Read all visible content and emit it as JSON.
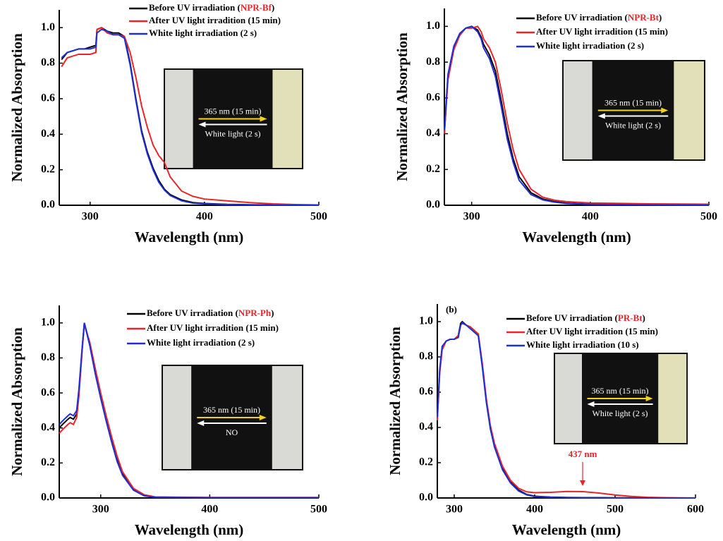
{
  "chart_data": [
    {
      "type": "line",
      "x_label": "Wavelength (nm)",
      "y_label": "Normalized Absorption",
      "xlim": [
        273,
        500
      ],
      "xticks": [
        300,
        400,
        500
      ],
      "ylim": [
        0,
        1.1
      ],
      "yticks": [
        {
          "value": 0,
          "label": "0.0"
        },
        {
          "value": 0.2,
          "label": "0.2"
        },
        {
          "value": 0.4,
          "label": "0.4"
        },
        {
          "value": 0.6,
          "label": "0.6"
        },
        {
          "value": 0.8,
          "label": "0.8"
        },
        {
          "value": 1,
          "label": "1.0"
        }
      ],
      "x": [
        275,
        280,
        285,
        290,
        295,
        300,
        305,
        306,
        310,
        315,
        320,
        325,
        330,
        335,
        340,
        345,
        350,
        355,
        360,
        365,
        370,
        380,
        390,
        400,
        420,
        440,
        460,
        480,
        500
      ],
      "series": [
        {
          "name": "Before UV  irradiation (NPR-Bf)",
          "color": "#000000",
          "values": [
            0.82,
            0.86,
            0.87,
            0.88,
            0.88,
            0.89,
            0.9,
            0.99,
            1.0,
            0.98,
            0.97,
            0.97,
            0.95,
            0.8,
            0.6,
            0.42,
            0.3,
            0.21,
            0.14,
            0.09,
            0.06,
            0.03,
            0.015,
            0.01,
            0.005,
            0.003,
            0.002,
            0.001,
            0
          ]
        },
        {
          "name": "After UV light irradition (15 min)",
          "color": "#e8262a",
          "values": [
            0.78,
            0.83,
            0.84,
            0.85,
            0.85,
            0.85,
            0.86,
            0.99,
            1.0,
            0.97,
            0.96,
            0.96,
            0.95,
            0.86,
            0.72,
            0.56,
            0.44,
            0.34,
            0.28,
            0.24,
            0.16,
            0.08,
            0.05,
            0.035,
            0.025,
            0.015,
            0.008,
            0.004,
            0.002
          ]
        },
        {
          "name": "White light irradiation (2 s)",
          "color": "#1f2fd6",
          "values": [
            0.83,
            0.86,
            0.87,
            0.88,
            0.88,
            0.88,
            0.89,
            0.97,
            0.99,
            0.98,
            0.96,
            0.96,
            0.94,
            0.79,
            0.59,
            0.41,
            0.29,
            0.2,
            0.13,
            0.085,
            0.055,
            0.025,
            0.012,
            0.008,
            0.004,
            0.002,
            0.001,
            0.001,
            0
          ]
        }
      ],
      "inset_labels": [
        "365 nm (15 min)",
        "White light (2 s)"
      ]
    },
    {
      "type": "line",
      "x_label": "Wavelength (nm)",
      "y_label": "Normalized Absorption",
      "xlim": [
        277,
        500
      ],
      "xticks": [
        300,
        400,
        500
      ],
      "ylim": [
        0,
        1.1
      ],
      "yticks": [
        {
          "value": 0,
          "label": "0.0"
        },
        {
          "value": 0.2,
          "label": "0.2"
        },
        {
          "value": 0.4,
          "label": "0.4"
        },
        {
          "value": 0.6,
          "label": "0.6"
        },
        {
          "value": 0.8,
          "label": "0.8"
        },
        {
          "value": 1,
          "label": "1.0"
        }
      ],
      "x": [
        277,
        280,
        285,
        290,
        295,
        300,
        305,
        308,
        310,
        315,
        320,
        325,
        330,
        335,
        340,
        350,
        360,
        370,
        380,
        400,
        450,
        500
      ],
      "series": [
        {
          "name": "Before UV  irradiation (NPR-Bt)",
          "color": "#000000",
          "values": [
            0.4,
            0.72,
            0.88,
            0.96,
            0.99,
            1.0,
            0.98,
            0.94,
            0.9,
            0.84,
            0.75,
            0.58,
            0.4,
            0.26,
            0.16,
            0.07,
            0.035,
            0.02,
            0.012,
            0.006,
            0.003,
            0.002
          ]
        },
        {
          "name": "After UV light irradition (15 min)",
          "color": "#e8262a",
          "values": [
            0.4,
            0.7,
            0.87,
            0.95,
            0.99,
            0.99,
            1.0,
            0.97,
            0.93,
            0.88,
            0.8,
            0.64,
            0.46,
            0.31,
            0.2,
            0.09,
            0.045,
            0.028,
            0.02,
            0.013,
            0.008,
            0.006
          ]
        },
        {
          "name": "White light irradiation (2 s)",
          "color": "#1f2fd6",
          "values": [
            0.42,
            0.73,
            0.89,
            0.96,
            0.99,
            1.0,
            0.97,
            0.93,
            0.88,
            0.82,
            0.72,
            0.55,
            0.37,
            0.24,
            0.14,
            0.06,
            0.03,
            0.017,
            0.01,
            0.005,
            0.002,
            0.001
          ]
        }
      ],
      "inset_labels": [
        "365 nm (15 min)",
        "White light (2 s)"
      ]
    },
    {
      "type": "line",
      "x_label": "Wavelength (nm)",
      "y_label": "Normalized Absorption",
      "xlim": [
        262,
        500
      ],
      "xticks": [
        300,
        400,
        500
      ],
      "ylim": [
        0,
        1.1
      ],
      "yticks": [
        {
          "value": 0,
          "label": "0.0"
        },
        {
          "value": 0.2,
          "label": "0.2"
        },
        {
          "value": 0.4,
          "label": "0.4"
        },
        {
          "value": 0.6,
          "label": "0.6"
        },
        {
          "value": 0.8,
          "label": "0.8"
        },
        {
          "value": 1,
          "label": "1.0"
        }
      ],
      "x": [
        262,
        265,
        270,
        272,
        275,
        278,
        280,
        283,
        285,
        290,
        295,
        300,
        305,
        310,
        315,
        320,
        330,
        340,
        350,
        400,
        450,
        500
      ],
      "series": [
        {
          "name": "Before UV  irradiation (NPR-Ph)",
          "color": "#000000",
          "values": [
            0.4,
            0.42,
            0.45,
            0.46,
            0.45,
            0.48,
            0.6,
            0.85,
            1.0,
            0.88,
            0.72,
            0.58,
            0.45,
            0.33,
            0.22,
            0.14,
            0.05,
            0.015,
            0.005,
            0.002,
            0.002,
            0.002
          ]
        },
        {
          "name": "After UV light irradition (15 min)",
          "color": "#e8262a",
          "values": [
            0.37,
            0.39,
            0.42,
            0.43,
            0.42,
            0.46,
            0.58,
            0.84,
            0.99,
            0.89,
            0.74,
            0.6,
            0.47,
            0.35,
            0.24,
            0.15,
            0.055,
            0.018,
            0.006,
            0.003,
            0.003,
            0.003
          ]
        },
        {
          "name": "White light irradiation (2 s)",
          "color": "#1f2fd6",
          "values": [
            0.42,
            0.44,
            0.47,
            0.48,
            0.47,
            0.5,
            0.62,
            0.86,
            1.0,
            0.87,
            0.71,
            0.57,
            0.44,
            0.32,
            0.21,
            0.13,
            0.045,
            0.012,
            0.004,
            0.002,
            0.002,
            0.002
          ]
        }
      ],
      "inset_labels": [
        "365 nm (15 min)",
        "NO"
      ]
    },
    {
      "type": "line",
      "panel_label": "(b)",
      "annotation": "437 nm",
      "x_label": "Wavelength (nm)",
      "y_label": "Normalized Absorption",
      "xlim": [
        279,
        600
      ],
      "xticks": [
        300,
        400,
        500,
        600
      ],
      "ylim": [
        0,
        1.1
      ],
      "yticks": [
        {
          "value": 0,
          "label": "0.0"
        },
        {
          "value": 0.2,
          "label": "0.2"
        },
        {
          "value": 0.4,
          "label": "0.4"
        },
        {
          "value": 0.6,
          "label": "0.6"
        },
        {
          "value": 0.8,
          "label": "0.8"
        },
        {
          "value": 1,
          "label": "1.0"
        }
      ],
      "x": [
        279,
        282,
        285,
        290,
        295,
        300,
        305,
        308,
        310,
        315,
        320,
        325,
        330,
        335,
        340,
        345,
        350,
        360,
        370,
        380,
        390,
        400,
        420,
        440,
        460,
        480,
        500,
        520,
        540,
        560,
        580,
        600
      ],
      "series": [
        {
          "name": "Before UV  irradiation (PR-Bt)",
          "color": "#000000",
          "values": [
            0.45,
            0.72,
            0.85,
            0.89,
            0.9,
            0.9,
            0.92,
            0.99,
            1.0,
            0.98,
            0.97,
            0.95,
            0.92,
            0.75,
            0.55,
            0.4,
            0.3,
            0.17,
            0.09,
            0.045,
            0.02,
            0.01,
            0.005,
            0.003,
            0.002,
            0.002,
            0.001,
            0.001,
            0,
            0,
            0,
            0
          ]
        },
        {
          "name": "After UV light irradition (15 min)",
          "color": "#e8262a",
          "values": [
            0.44,
            0.71,
            0.84,
            0.89,
            0.9,
            0.9,
            0.92,
            0.98,
            0.99,
            0.98,
            0.97,
            0.95,
            0.93,
            0.76,
            0.56,
            0.41,
            0.31,
            0.18,
            0.1,
            0.055,
            0.035,
            0.03,
            0.032,
            0.037,
            0.036,
            0.028,
            0.017,
            0.009,
            0.004,
            0.002,
            0.001,
            0
          ]
        },
        {
          "name": "White light irradiation (10 s)",
          "color": "#1f2fd6",
          "values": [
            0.46,
            0.73,
            0.86,
            0.89,
            0.9,
            0.9,
            0.91,
            0.98,
            0.995,
            0.98,
            0.96,
            0.94,
            0.92,
            0.74,
            0.54,
            0.39,
            0.29,
            0.16,
            0.085,
            0.04,
            0.018,
            0.008,
            0.004,
            0.002,
            0.001,
            0.001,
            0,
            0,
            0,
            0,
            0,
            0
          ]
        }
      ],
      "inset_labels": [
        "365 nm (15 min)",
        "White light (2 s)"
      ]
    }
  ]
}
